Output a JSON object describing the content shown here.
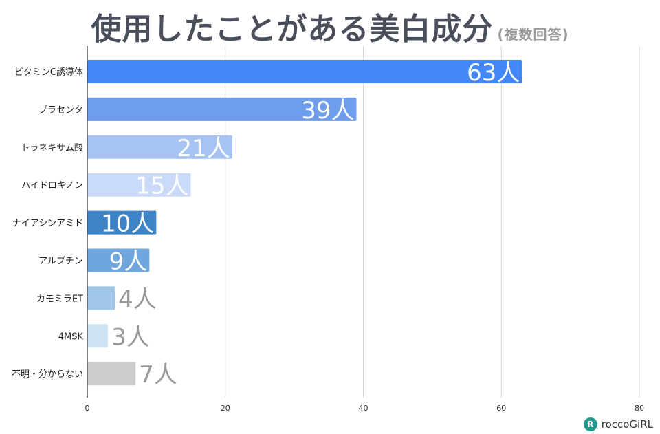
{
  "chart_data": {
    "type": "bar",
    "orientation": "horizontal",
    "title": "使用したことがある美白成分",
    "subtitle": "(複数回答)",
    "categories": [
      "ビタミンC誘導体",
      "プラセンタ",
      "トラネキサム酸",
      "ハイドロキノン",
      "ナイアシンアミド",
      "アルブチン",
      "カモミラET",
      "4MSK",
      "不明・分からない"
    ],
    "values": [
      63,
      39,
      21,
      15,
      10,
      9,
      4,
      3,
      7
    ],
    "value_labels": [
      "63人",
      "39人",
      "21人",
      "15人",
      "10人",
      "9人",
      "4人",
      "3人",
      "7人"
    ],
    "colors": [
      "#4287f5",
      "#6d9deb",
      "#a6c3f3",
      "#c9dbf8",
      "#3d84c6",
      "#6fa6dd",
      "#a0c6e8",
      "#cfe2f3",
      "#cccccc"
    ],
    "xlim": [
      0,
      80
    ],
    "xticks": [
      "0",
      "20",
      "40",
      "60",
      "80"
    ],
    "grid": true,
    "xlabel": "",
    "ylabel": ""
  },
  "logo": {
    "text": "roccoGiRL",
    "mark": "R"
  }
}
